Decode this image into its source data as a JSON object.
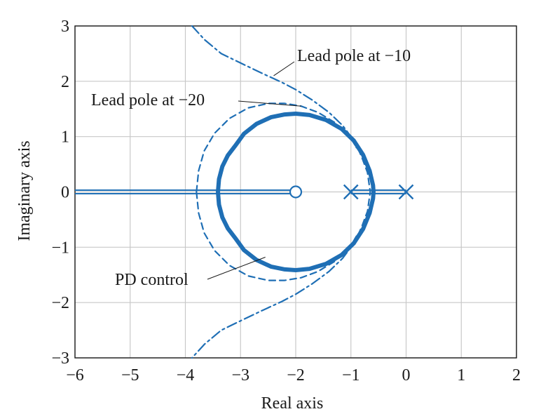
{
  "chart_data": {
    "type": "line",
    "title": "",
    "xlabel": "Real axis",
    "ylabel": "Imaginary axis",
    "xlim": [
      -6,
      2
    ],
    "ylim": [
      -3,
      3
    ],
    "xticks": [
      -6,
      -5,
      -4,
      -3,
      -2,
      -1,
      0,
      1,
      2
    ],
    "yticks": [
      -3,
      -2,
      -1,
      0,
      1,
      2,
      3
    ],
    "xtick_labels": [
      "−6",
      "−5",
      "−4",
      "−3",
      "−2",
      "−1",
      "0",
      "1",
      "2"
    ],
    "ytick_labels": [
      "−3",
      "−2",
      "−1",
      "0",
      "1",
      "2",
      "3"
    ],
    "grid": true,
    "series": [
      {
        "name": "PD control",
        "style": "solid",
        "points": [
          [
            -3.41,
            0
          ],
          [
            -3.39,
            0.23
          ],
          [
            -3.33,
            0.46
          ],
          [
            -3.23,
            0.66
          ],
          [
            -3.1,
            0.83
          ],
          [
            -2.94,
            1.05
          ],
          [
            -2.71,
            1.23
          ],
          [
            -2.45,
            1.35
          ],
          [
            -2.2,
            1.4
          ],
          [
            -2.0,
            1.414
          ],
          [
            -1.75,
            1.39
          ],
          [
            -1.45,
            1.3
          ],
          [
            -1.17,
            1.14
          ],
          [
            -0.95,
            0.93
          ],
          [
            -0.78,
            0.67
          ],
          [
            -0.66,
            0.38
          ],
          [
            -0.6,
            0.12
          ],
          [
            -0.59,
            0
          ],
          [
            -0.6,
            -0.12
          ],
          [
            -0.66,
            -0.38
          ],
          [
            -0.78,
            -0.67
          ],
          [
            -0.95,
            -0.93
          ],
          [
            -1.17,
            -1.14
          ],
          [
            -1.45,
            -1.3
          ],
          [
            -1.75,
            -1.39
          ],
          [
            -2.0,
            -1.414
          ],
          [
            -2.2,
            -1.4
          ],
          [
            -2.45,
            -1.35
          ],
          [
            -2.71,
            -1.23
          ],
          [
            -2.94,
            -1.05
          ],
          [
            -3.1,
            -0.83
          ],
          [
            -3.23,
            -0.66
          ],
          [
            -3.33,
            -0.46
          ],
          [
            -3.39,
            -0.23
          ],
          [
            -3.41,
            0
          ]
        ]
      },
      {
        "name": "Lead pole at −20",
        "style": "dashed",
        "points": [
          [
            -3.8,
            0
          ],
          [
            -3.76,
            0.38
          ],
          [
            -3.66,
            0.74
          ],
          [
            -3.47,
            1.06
          ],
          [
            -3.2,
            1.33
          ],
          [
            -2.86,
            1.52
          ],
          [
            -2.5,
            1.6
          ],
          [
            -2.2,
            1.6
          ],
          [
            -1.9,
            1.55
          ],
          [
            -1.6,
            1.44
          ],
          [
            -1.3,
            1.26
          ],
          [
            -1.05,
            1.03
          ],
          [
            -0.9,
            0.85
          ],
          [
            -0.8,
            0.62
          ],
          [
            -0.7,
            0.35
          ],
          [
            -0.65,
            0
          ],
          [
            -0.7,
            -0.35
          ],
          [
            -0.8,
            -0.62
          ],
          [
            -0.9,
            -0.85
          ],
          [
            -1.05,
            -1.03
          ],
          [
            -1.3,
            -1.26
          ],
          [
            -1.6,
            -1.44
          ],
          [
            -1.9,
            -1.55
          ],
          [
            -2.2,
            -1.6
          ],
          [
            -2.5,
            -1.6
          ],
          [
            -2.86,
            -1.52
          ],
          [
            -3.2,
            -1.33
          ],
          [
            -3.47,
            -1.06
          ],
          [
            -3.66,
            -0.74
          ],
          [
            -3.76,
            -0.38
          ],
          [
            -3.8,
            0
          ]
        ]
      },
      {
        "name": "Lead pole at −10",
        "style": "dashdot",
        "points": [
          [
            -3.88,
            3.0
          ],
          [
            -3.65,
            2.75
          ],
          [
            -3.35,
            2.5
          ],
          [
            -3.0,
            2.33
          ],
          [
            -2.6,
            2.14
          ],
          [
            -2.25,
            1.98
          ],
          [
            -2.0,
            1.85
          ],
          [
            -1.7,
            1.66
          ],
          [
            -1.4,
            1.44
          ],
          [
            -1.15,
            1.2
          ],
          [
            -1.0,
            1.0
          ],
          [
            -0.93,
            0.85
          ],
          [
            -0.9,
            0.8
          ]
        ]
      },
      {
        "name": "Lead pole at −10",
        "style": "dashdot",
        "points": [
          [
            -0.9,
            -0.8
          ],
          [
            -0.93,
            -0.85
          ],
          [
            -1.0,
            -1.0
          ],
          [
            -1.15,
            -1.2
          ],
          [
            -1.4,
            -1.44
          ],
          [
            -1.7,
            -1.66
          ],
          [
            -2.0,
            -1.85
          ],
          [
            -2.25,
            -1.98
          ],
          [
            -2.6,
            -2.14
          ],
          [
            -3.0,
            -2.33
          ],
          [
            -3.35,
            -2.5
          ],
          [
            -3.65,
            -2.75
          ],
          [
            -3.88,
            -3.0
          ]
        ]
      }
    ],
    "real_axis_locus": [
      [
        -6,
        -2
      ],
      [
        -1,
        0
      ]
    ],
    "poles": [
      [
        -1,
        0
      ],
      [
        0,
        0
      ]
    ],
    "zeros": [
      [
        -2,
        0
      ]
    ],
    "annotations": [
      {
        "text": "Lead pole at −10",
        "target": [
          -2.4,
          2.1
        ]
      },
      {
        "text": "Lead pole at −20",
        "target": [
          -1.9,
          1.55
        ]
      },
      {
        "text": "PD control",
        "target": [
          -2.55,
          -1.18
        ]
      }
    ]
  },
  "colors": {
    "series": "#1f6fb5",
    "grid": "#c8c8c8",
    "frame": "#1a1a1a",
    "text": "#1a1a1a"
  }
}
